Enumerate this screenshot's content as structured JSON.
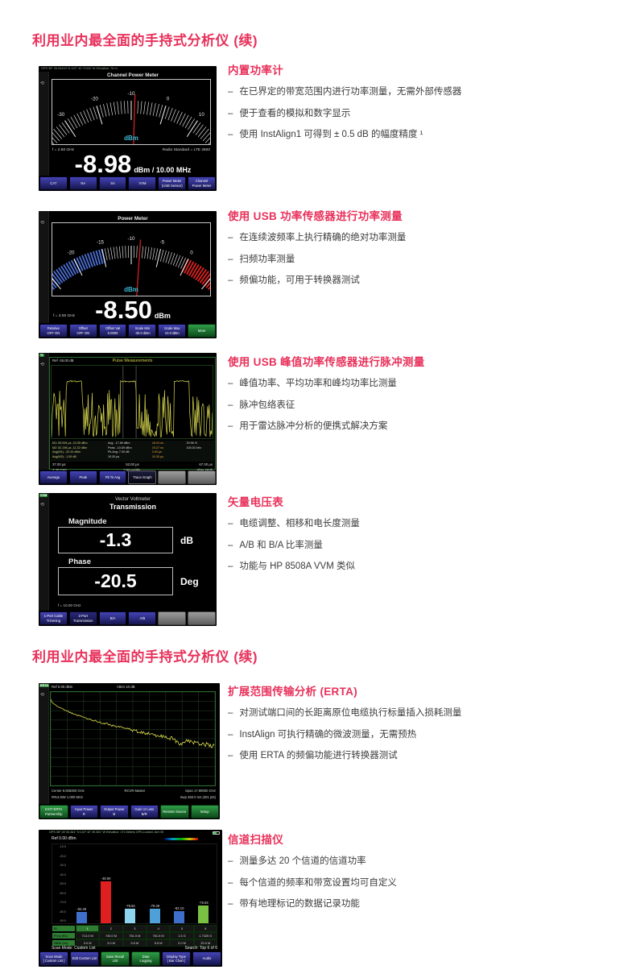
{
  "page": {
    "title1": "利用业内最全面的手持式分析仪 (续)",
    "title2": "利用业内最全面的手持式分析仪 (续)"
  },
  "sections": [
    {
      "heading": "内置功率计",
      "bullets": [
        "在已界定的带宽范围内进行功率测量，无需外部传感器",
        "便于查看的模拟和数字显示",
        "使用 InstAlign1 可得到 ± 0.5 dB 的幅度精度 ¹"
      ]
    },
    {
      "heading": "使用 USB 功率传感器进行功率测量",
      "bullets": [
        "在连续波频率上执行精确的绝对功率测量",
        "扫频功率测量",
        "频偏功能，可用于转换器测试"
      ]
    },
    {
      "heading": "使用 USB 峰值功率传感器进行脉冲测量",
      "bullets": [
        "峰值功率、平均功率和峰均功率比测量",
        "脉冲包络表征",
        "用于雷达脉冲分析的便携式解决方案"
      ]
    },
    {
      "heading": "矢量电压表",
      "bullets": [
        "电缆调整、相移和电长度测量",
        "A/B 和 B/A 比率测量",
        "功能与 HP 8508A VVM 类似"
      ]
    },
    {
      "heading": "扩展范围传输分析 (ERTA)",
      "bullets": [
        "对测试端口间的长距离原位电缆执行标量插入损耗测量",
        "InstAlign 可执行精确的微波测量，无需预热",
        "使用 ERTA 的频偏功能进行转换器测试"
      ]
    },
    {
      "heading": "信道扫描仪",
      "bullets": [
        "测量多达 20 个信道的信道功率",
        "每个信道的频率和带宽设置均可自定义",
        "带有地理标记的数据记录功能"
      ]
    }
  ],
  "shots": {
    "cpm": {
      "gps": "GPS   38° 26.94410' N    122° 42.71034' W    Elevation: 76 m",
      "title": "Channel Power Meter",
      "unit": "dBm",
      "freq": "f = 2.60 GHz",
      "radio": "Radio Standard = LTE 2600",
      "reading": "-8.98",
      "reading_suffix": "dBm / 10.00 MHz",
      "gauge": {
        "scale": [
          -40,
          -30,
          -20,
          -10,
          0,
          10,
          20
        ],
        "minor": 1,
        "needle": -8.98,
        "span": 100,
        "zones": []
      },
      "softkeys": [
        {
          "t": "CAT"
        },
        {
          "t": "NA"
        },
        {
          "t": "SA"
        },
        {
          "t": "VVM"
        },
        {
          "t": "Power Meter",
          "b": "(USB Sensor)"
        },
        {
          "t": "Channel",
          "b": "Power Meter"
        }
      ]
    },
    "pm": {
      "title": "Power Meter",
      "unit": "dBm",
      "freq": "f = 3.00 GHz",
      "reading": "-8.50",
      "reading_suffix": "dBm",
      "gauge": {
        "scale": [
          -30,
          -25,
          -20,
          -15,
          -10,
          -5,
          0,
          5,
          10
        ],
        "minor": 0.5,
        "needle": -8.5,
        "span": 104,
        "zones": [
          {
            "from": -30,
            "to": -15,
            "color": "#4d6fd6"
          },
          {
            "from": 0,
            "to": 10,
            "color": "#e02222"
          }
        ]
      },
      "softkeys": [
        {
          "t": "Relative",
          "b": "OFF ON"
        },
        {
          "t": "Offset",
          "b": "OFF ON"
        },
        {
          "t": "Offset Val",
          "b": "0.0000"
        },
        {
          "t": "Scale Min",
          "b": "-30.0 dBm"
        },
        {
          "t": "Scale Max",
          "b": "10.0 dBm"
        },
        {
          "t": "More",
          "c": "green"
        }
      ]
    },
    "pulse": {
      "ref": "Ref -36.00 dB",
      "title": "Pulse Measurements",
      "readout1": "M1: 50.094 μs   -24.35 dBm\nM2: 52.196 μs   -11.32 dBm\nAvg(M1): -32.44 dBm\nAvg(M2): -1.55 dB",
      "readout2": "Avg:   -17.69 dBm\nPeak:  -10.69 dBm\nPk-Avg:  7.00 dB\n10.30 μs",
      "readout3": "18.24 ns\n19.27 ns\n2.00 μs\n10.30 μs",
      "readout4": "29.96 %\n105.00 kHz",
      "axis_left": "37.00 μs",
      "axis_mid": "52.00 μs",
      "axis_right": "67.00 μs",
      "foot_left": "2.20 GHz",
      "foot_mid": "3.00 μs/div",
      "foot_right": "Vbw: High",
      "softkeys": [
        {
          "t": "Average"
        },
        {
          "t": "Peak"
        },
        {
          "t": "Pk To Avg"
        },
        {
          "t": "Trace Graph",
          "c": "dark"
        },
        {
          "c": "gray"
        },
        {
          "c": "gray"
        }
      ]
    },
    "vvm": {
      "tag": "VVM",
      "title1": "Vector Voltmeter",
      "title2": "Transmission",
      "mag_label": "Magnitude",
      "mag_value": "-1.3",
      "mag_unit": "dB",
      "phase_label": "Phase",
      "phase_value": "-20.5",
      "phase_unit": "Deg",
      "freq": "f =   10.00 GHz",
      "softkeys": [
        {
          "t": "1-Port Cable",
          "b": "Trimming"
        },
        {
          "t": "2-Port",
          "b": "Transmission",
          "c": "navy"
        },
        {
          "t": "B/A"
        },
        {
          "t": "A/B"
        },
        {
          "c": "gray"
        },
        {
          "c": "gray"
        }
      ]
    },
    "erta": {
      "tag": "ERTA",
      "ref": "Ref 0.00 dBm",
      "atten": "Atten 10 dB",
      "center": "Center 9.005000 GHz",
      "mode": "RCVR Master",
      "span": "Span 17.99000 GHz",
      "resbw": "#Res BW 1.000 MHz",
      "sweep": "Swp 450.0 ms (401 pts)",
      "softkeys": [
        {
          "t": "EXIT ERTA",
          "b": "Partnership",
          "c": "green"
        },
        {
          "t": "Input Power",
          "b": "R"
        },
        {
          "t": "Output Power",
          "b": "B"
        },
        {
          "t": "Gain or Loss",
          "b": "B/R"
        },
        {
          "t": "Remote Source",
          "c": "green"
        },
        {
          "t": "Setup",
          "c": "green"
        }
      ]
    },
    "scanner": {
      "gps": "GPS   38° 26' 52.841\" N   122° 42' 39.381\" W   Elevation: 171 Meters   GPS-Locked, Ant OK",
      "ref": "Ref 0.00 dBm",
      "ylabels": [
        "-10.0",
        "-20.0",
        "-30.0",
        "-40.0",
        "-50.0",
        "-60.0",
        "-70.0",
        "-80.0",
        "-90.0"
      ],
      "bars": [
        {
          "id": "1",
          "value": -82.48,
          "label": "-82.48",
          "freq": "713.0 M",
          "rbw": "3.0 M",
          "color": "#3e6fcb"
        },
        {
          "id": "2",
          "value": -48.9,
          "label": "-48.90",
          "freq": "740.0 M",
          "rbw": "3.0 M",
          "color": "#e02020"
        },
        {
          "id": "3",
          "value": -78.84,
          "label": "-78.84",
          "freq": "751.5 M",
          "rbw": "5.5 M",
          "color": "#8fd4ef"
        },
        {
          "id": "4",
          "value": -79.39,
          "label": "-79.39",
          "freq": "761.5 M",
          "rbw": "5.5 M",
          "color": "#4f9fd9"
        },
        {
          "id": "5",
          "value": -82.1,
          "label": "-82.10",
          "freq": "1.5 G",
          "rbw": "2.0 M",
          "color": "#3e6fcb"
        },
        {
          "id": "6",
          "value": -75.84,
          "label": "-75.84",
          "freq": "1.7325 G",
          "rbw": "20.0 M",
          "color": "#7ac143"
        }
      ],
      "row_labels": {
        "id": "ID",
        "freq": "Freq (Hz)",
        "rbw": "RBW (Hz)"
      },
      "status_left": "Scan Mode: Custom List",
      "status_right": "Search: Top 6 of 6",
      "softkeys": [
        {
          "t": "Scan Mode",
          "b": "[ Custom List ]"
        },
        {
          "t": "Edit Custom List"
        },
        {
          "t": "Save Recall",
          "b": "List",
          "c": "green"
        },
        {
          "t": "Data",
          "b": "Logging",
          "c": "green"
        },
        {
          "t": "Display Type",
          "b": "[ Bar Chart ]"
        },
        {
          "t": "Audio"
        }
      ]
    }
  }
}
